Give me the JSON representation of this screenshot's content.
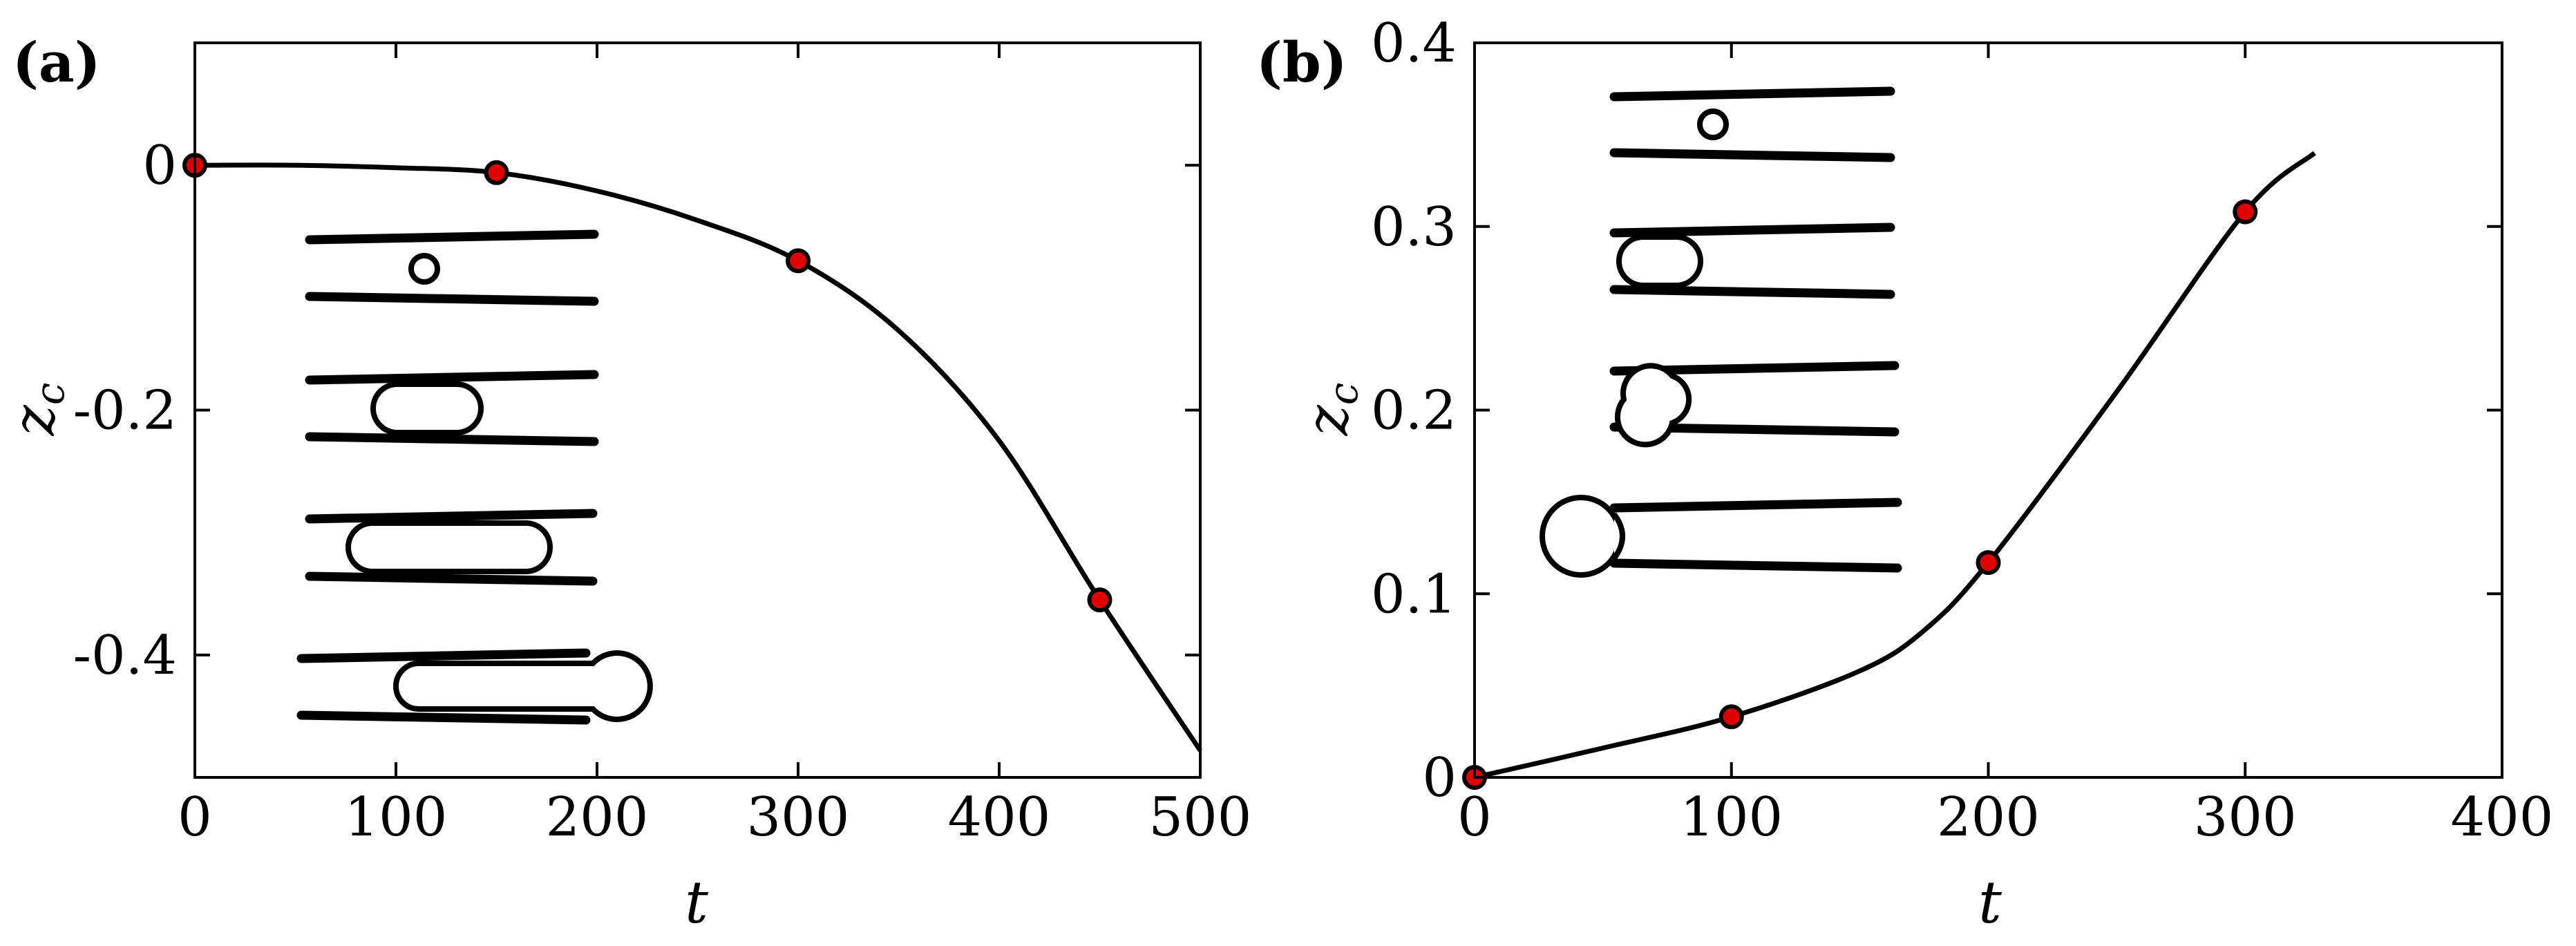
{
  "chart_data": [
    {
      "type": "line",
      "panel_label": "(a)",
      "xlabel": "t",
      "ylabel": "z",
      "ylabel_sub": "c",
      "xlim": [
        0,
        500
      ],
      "ylim": [
        -0.5,
        0.1
      ],
      "xticks": [
        0,
        100,
        200,
        300,
        400,
        500
      ],
      "xtick_labels": [
        "0",
        "100",
        "200",
        "300",
        "400",
        "500"
      ],
      "yticks": [
        0,
        -0.2,
        -0.4
      ],
      "ytick_labels": [
        "0",
        "-0.2",
        "-0.4"
      ],
      "grid": false,
      "line_color": "#000000",
      "marker_color": "#e00000",
      "series": [
        {
          "x": [
            0,
            50,
            100,
            150,
            200,
            250,
            300,
            350,
            400,
            450,
            500
          ],
          "y": [
            0,
            0,
            -0.002,
            -0.006,
            -0.021,
            -0.045,
            -0.078,
            -0.135,
            -0.225,
            -0.355,
            -0.478
          ]
        }
      ],
      "markers": {
        "x": [
          0,
          150,
          300,
          450
        ],
        "y": [
          0,
          -0.006,
          -0.078,
          -0.355
        ]
      }
    },
    {
      "type": "line",
      "panel_label": "(b)",
      "xlabel": "t",
      "ylabel": "z",
      "ylabel_sub": "c",
      "xlim": [
        0,
        400
      ],
      "ylim": [
        0,
        0.4
      ],
      "xticks": [
        0,
        100,
        200,
        300,
        400
      ],
      "xtick_labels": [
        "0",
        "100",
        "200",
        "300",
        "400"
      ],
      "yticks": [
        0,
        0.1,
        0.2,
        0.3,
        0.4
      ],
      "ytick_labels": [
        "0",
        "0.1",
        "0.2",
        "0.3",
        "0.4"
      ],
      "grid": false,
      "line_color": "#000000",
      "marker_color": "#e00000",
      "series": [
        {
          "x": [
            0,
            50,
            100,
            150,
            175,
            200,
            250,
            300,
            327
          ],
          "y": [
            0,
            0.016,
            0.033,
            0.058,
            0.08,
            0.117,
            0.21,
            0.308,
            0.34
          ]
        }
      ],
      "markers": {
        "x": [
          0,
          100,
          200,
          300
        ],
        "y": [
          0,
          0.033,
          0.117,
          0.308
        ]
      }
    }
  ]
}
